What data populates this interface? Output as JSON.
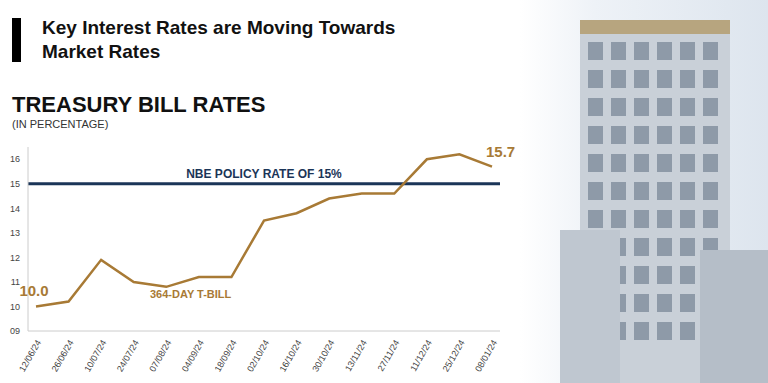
{
  "chart_data": {
    "type": "line",
    "title": "Key Interest Rates are Moving Towards Market Rates",
    "subtitle": "TREASURY BILL RATES",
    "ylabel": "(IN PERCENTAGE)",
    "categories": [
      "12/06/24",
      "26/06/24",
      "10/07/24",
      "24/07/24",
      "07/08/24",
      "04/09/24",
      "18/09/24",
      "02/10/24",
      "16/10/24",
      "30/10/24",
      "13/11/24",
      "27/11/24",
      "11/12/24",
      "25/12/24",
      "08/01/24"
    ],
    "series": [
      {
        "name": "364-DAY T-BILL",
        "color": "#a87a35",
        "values": [
          10.0,
          10.2,
          11.9,
          11.0,
          10.8,
          11.2,
          11.2,
          13.5,
          13.8,
          14.4,
          14.6,
          14.6,
          16.0,
          16.2,
          15.7
        ],
        "value_labels": [
          "10.0",
          null,
          null,
          null,
          null,
          null,
          null,
          null,
          null,
          null,
          null,
          null,
          null,
          null,
          "15.7"
        ]
      }
    ],
    "reference_lines": [
      {
        "value": 15,
        "label": "NBE POLICY RATE OF 15%",
        "color": "#1b3558"
      }
    ],
    "ylim": [
      9,
      16.5
    ],
    "yticks": [
      {
        "value": 9,
        "label": "09"
      },
      10,
      11,
      12,
      13,
      14,
      15,
      16
    ],
    "grid": false,
    "data_labels": true
  }
}
